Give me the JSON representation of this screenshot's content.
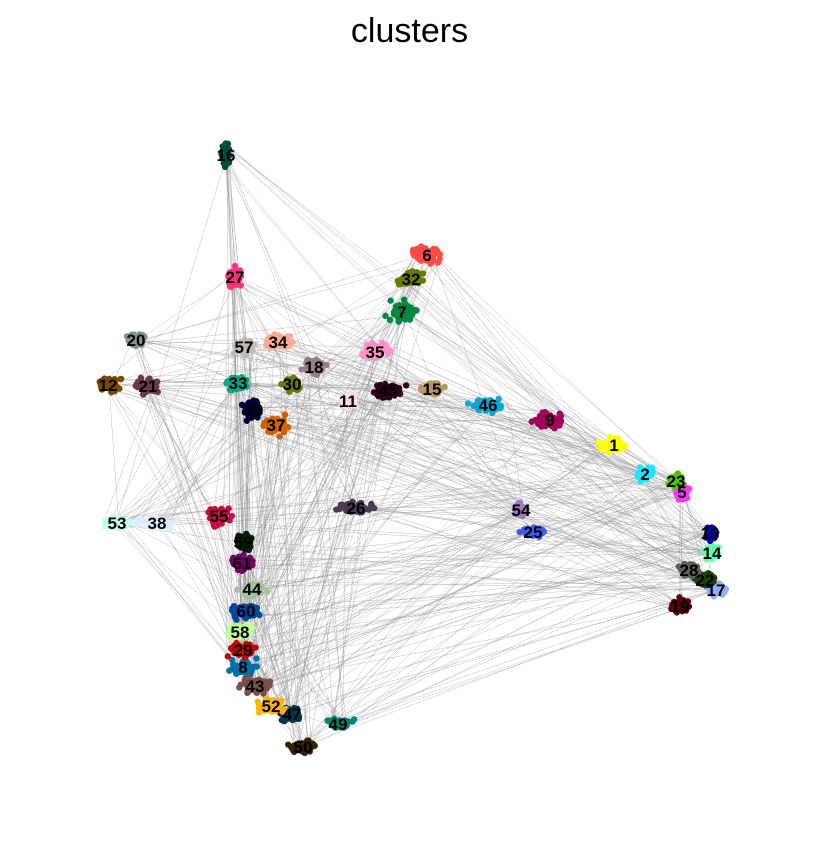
{
  "title": "clusters",
  "clusters": [
    {
      "id": "1",
      "color": "#FFFF00"
    },
    {
      "id": "2",
      "color": "#1CE6FF"
    },
    {
      "id": "5",
      "color": "#FF34FF"
    },
    {
      "id": "6",
      "color": "#FF4A46"
    },
    {
      "id": "7",
      "color": "#008941"
    },
    {
      "id": "8",
      "color": "#006FA6"
    },
    {
      "id": "9",
      "color": "#A30059"
    },
    {
      "id": "11",
      "color": "#FFDBE5"
    },
    {
      "id": "12",
      "color": "#7A4900"
    },
    {
      "id": "13",
      "color": "#0000A6"
    },
    {
      "id": "14",
      "color": "#63FFAC"
    },
    {
      "id": "15",
      "color": "#B79762"
    },
    {
      "id": "16",
      "color": "#004D43"
    },
    {
      "id": "17",
      "color": "#8FB0FF"
    },
    {
      "id": "18",
      "color": "#997D87"
    },
    {
      "id": "19",
      "color": "#5A0007"
    },
    {
      "id": "20",
      "color": "#809693"
    },
    {
      "id": "21",
      "color": "#6A3A4C"
    },
    {
      "id": "22",
      "color": "#1B4400"
    },
    {
      "id": "23",
      "color": "#4FC601"
    },
    {
      "id": "25",
      "color": "#3B5DFF"
    },
    {
      "id": "26",
      "color": "#4A3B53"
    },
    {
      "id": "27",
      "color": "#FF2F80"
    },
    {
      "id": "28",
      "color": "#61615A"
    },
    {
      "id": "29",
      "color": "#BA0900"
    },
    {
      "id": "30",
      "color": "#6B7900"
    },
    {
      "id": "32",
      "color": "#6B7900"
    },
    {
      "id": "33",
      "color": "#00A587"
    },
    {
      "id": "34",
      "color": "#FFAA92"
    },
    {
      "id": "35",
      "color": "#FF90C9"
    },
    {
      "id": "37",
      "color": "#D16100"
    },
    {
      "id": "38",
      "color": "#DDEFFF"
    },
    {
      "id": "40",
      "color": "#000035"
    },
    {
      "id": "43",
      "color": "#7B4F4B"
    },
    {
      "id": "44",
      "color": "#A1C299"
    },
    {
      "id": "45",
      "color": "#300018"
    },
    {
      "id": "46",
      "color": "#0AA6D8"
    },
    {
      "id": "47",
      "color": "#013349"
    },
    {
      "id": "49",
      "color": "#00846F"
    },
    {
      "id": "50",
      "color": "#372101"
    },
    {
      "id": "52",
      "color": "#FFB500"
    },
    {
      "id": "53",
      "color": "#C2FFED"
    },
    {
      "id": "54",
      "color": "#A079BF"
    },
    {
      "id": "55",
      "color": "#CC0744"
    },
    {
      "id": "57",
      "color": "#C0B9B2"
    },
    {
      "id": "58",
      "color": "#C2FF99"
    },
    {
      "id": "59",
      "color": "#001E09"
    },
    {
      "id": "60",
      "color": "#00489C"
    },
    {
      "id": "61",
      "color": "#6F0062"
    }
  ]
}
